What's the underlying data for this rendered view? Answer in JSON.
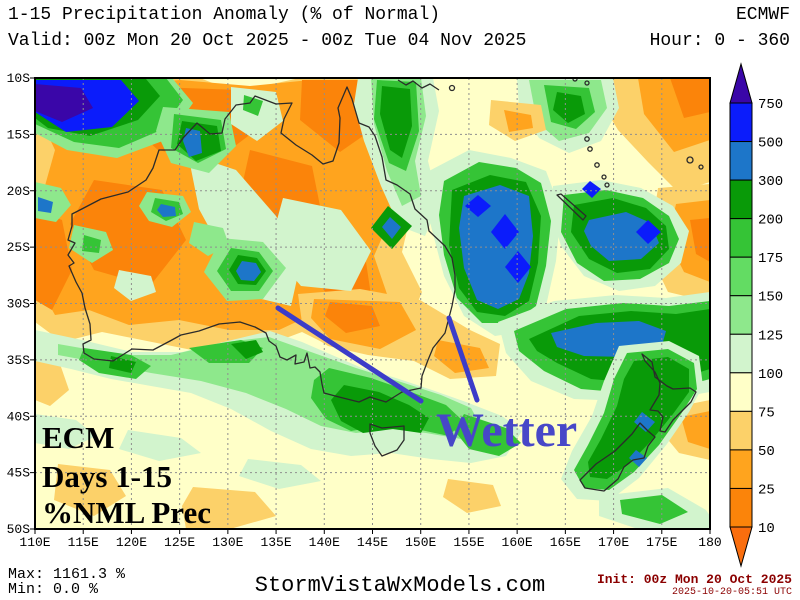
{
  "header": {
    "title": "1-15 Precipitation Anomaly (% of Normal)",
    "model": "ECMWF",
    "valid": "Valid: 00z Mon 20 Oct 2025 - 00z Tue 04 Nov 2025",
    "hour": "Hour: 0 - 360"
  },
  "map": {
    "annotation": "Wetter",
    "corner_label_lines": [
      "ECM",
      "Days 1-15",
      "%NML Prec"
    ],
    "x_tick_labels": [
      "110E",
      "115E",
      "120E",
      "125E",
      "130E",
      "135E",
      "140E",
      "145E",
      "150E",
      "155E",
      "160E",
      "165E",
      "170E",
      "175E",
      "180"
    ],
    "y_tick_labels": [
      "10S",
      "15S",
      "20S",
      "25S",
      "30S",
      "35S",
      "40S",
      "45S",
      "50S"
    ]
  },
  "colorbar": {
    "tick_labels": [
      "750",
      "500",
      "300",
      "200",
      "175",
      "150",
      "125",
      "100",
      "75",
      "50",
      "25",
      "10"
    ],
    "segment_colors_top_to_bottom": [
      "#0b1cfb",
      "#1d76c9",
      "#099a08",
      "#35c436",
      "#63dc63",
      "#8ee88c",
      "#d2f4cd",
      "#ffffc8",
      "#fcd169",
      "#ffa41e",
      "#fb840a"
    ],
    "arrow_top_color": "#3a06a8",
    "arrow_bottom_color": "#fa6e0e"
  },
  "footer": {
    "max": "Max: 1161.3 %",
    "min": "Min: 0.0 %",
    "watermark": "StormVistaWxModels.com",
    "init": "Init: 00z Mon 20 Oct 2025",
    "init_utc": "2025-10-20-05:51 UTC"
  },
  "colors": {
    "annotation_blue": "#4747c8",
    "init_text_red": "#8b0000",
    "base_fill": "#ffffc8"
  }
}
